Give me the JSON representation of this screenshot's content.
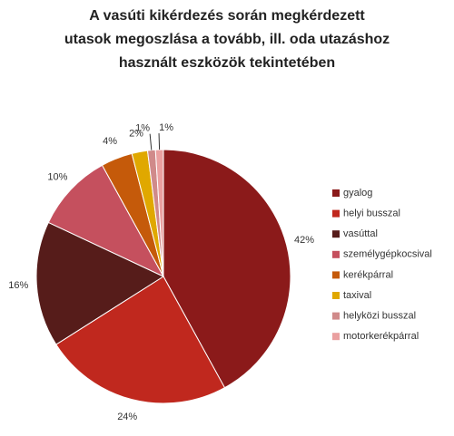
{
  "chart_data": {
    "type": "pie",
    "title": [
      "A vasúti kikérdezés során megkérdezett",
      "utasok megoszlása a tovább, ill.  oda utazáshoz",
      "használt eszközök tekintetében"
    ],
    "categories": [
      "gyalog",
      "helyi busszal",
      "vasúttal",
      "személygépkocsival",
      "kerékpárral",
      "taxival",
      "helyközi busszal",
      "motorkerékpárral"
    ],
    "values": [
      42,
      24,
      16,
      10,
      4,
      2,
      1,
      1
    ],
    "value_labels": [
      "42%",
      "24%",
      "16%",
      "10%",
      "4%",
      "2%",
      "1%",
      "1%"
    ],
    "colors": [
      "#8b1a1a",
      "#c0281e",
      "#561c1a",
      "#c5505e",
      "#c55a0a",
      "#e0a800",
      "#d08a8a",
      "#eaa0a0"
    ],
    "legend": "right"
  }
}
